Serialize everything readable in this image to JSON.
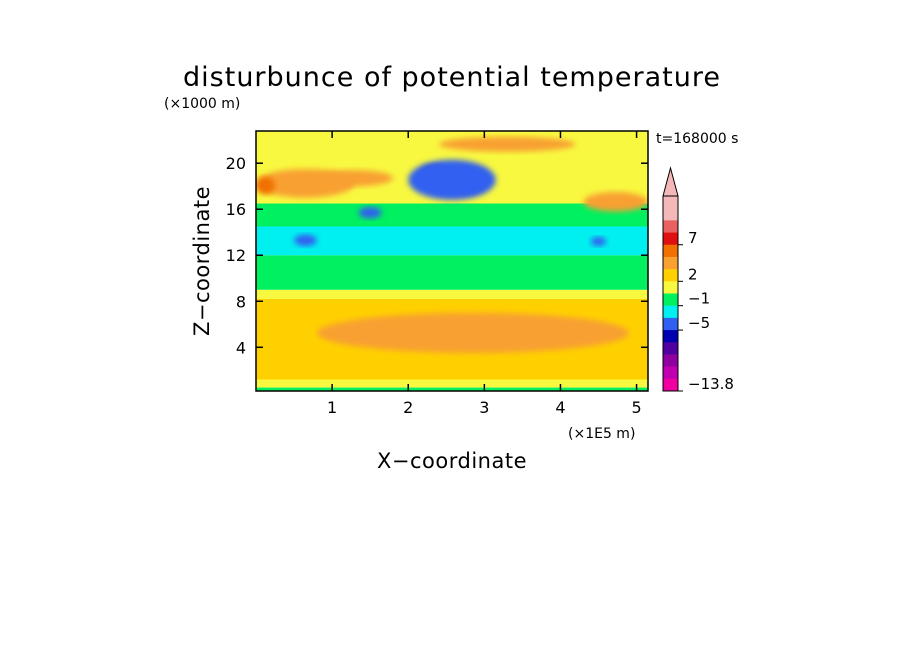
{
  "chart_data": {
    "type": "heatmap",
    "title": "disturbunce of potential temperature",
    "xlabel": "X−coordinate",
    "ylabel": "Z−coordinate",
    "x_units": "(×1E5 m)",
    "y_units": "(×1000 m)",
    "time_label": "t=168000 s",
    "xlim": [
      0,
      5.15
    ],
    "ylim": [
      0.2,
      22.8
    ],
    "x_ticks": [
      {
        "value": 1,
        "label": "1"
      },
      {
        "value": 2,
        "label": "2"
      },
      {
        "value": 3,
        "label": "3"
      },
      {
        "value": 4,
        "label": "4"
      },
      {
        "value": 5,
        "label": "5"
      }
    ],
    "y_ticks": [
      {
        "value": 4,
        "label": "4"
      },
      {
        "value": 8,
        "label": "8"
      },
      {
        "value": 12,
        "label": "12"
      },
      {
        "value": 16,
        "label": "16"
      },
      {
        "value": 20,
        "label": "20"
      }
    ],
    "colorbar": {
      "levels_top_to_bottom": [
        {
          "color": "#f5b8b8"
        },
        {
          "color": "#f5b8b8"
        },
        {
          "color": "#e86060"
        },
        {
          "color": "#e01010"
        },
        {
          "color": "#f07000"
        },
        {
          "color": "#f8a030"
        },
        {
          "color": "#ffd000"
        },
        {
          "color": "#f8f840"
        },
        {
          "color": "#00f060"
        },
        {
          "color": "#00f0f0"
        },
        {
          "color": "#3060f0"
        },
        {
          "color": "#0000b0"
        },
        {
          "color": "#5000a0"
        },
        {
          "color": "#9000a0"
        },
        {
          "color": "#c000b0"
        },
        {
          "color": "#f000a0"
        }
      ],
      "labels": [
        {
          "after_level": 3,
          "text": "7"
        },
        {
          "after_level": 6,
          "text": "2"
        },
        {
          "after_level": 8,
          "text": "−1"
        },
        {
          "after_level": 10,
          "text": "−5"
        },
        {
          "after_level": 15,
          "text": "−13.8"
        }
      ]
    },
    "bands": [
      {
        "z_range": [
          0.2,
          0.5
        ],
        "color": "#00f060"
      },
      {
        "z_range": [
          0.5,
          1.2
        ],
        "color": "#f8f840"
      },
      {
        "z_range": [
          1.2,
          8.2
        ],
        "color": "#ffd000"
      },
      {
        "z_range": [
          8.2,
          9.0
        ],
        "color": "#f8f840"
      },
      {
        "z_range": [
          9.0,
          12.0
        ],
        "color": "#00f060"
      },
      {
        "z_range": [
          12.0,
          14.5
        ],
        "color": "#00f0f0"
      },
      {
        "z_range": [
          14.5,
          16.5
        ],
        "color": "#00f060"
      },
      {
        "z_range": [
          16.5,
          22.8
        ],
        "color": "#f8f840"
      }
    ],
    "features": [
      {
        "kind": "warm_layer",
        "color": "#f8a030",
        "x": [
          0.0,
          1.3
        ],
        "z": [
          17.0,
          19.5
        ]
      },
      {
        "kind": "warm_layer",
        "color": "#f8a030",
        "x": [
          0.8,
          1.8
        ],
        "z": [
          18.0,
          19.4
        ]
      },
      {
        "kind": "warm_core",
        "color": "#f07000",
        "x": [
          0.0,
          0.25
        ],
        "z": [
          17.3,
          18.8
        ]
      },
      {
        "kind": "warm_layer",
        "color": "#f8a030",
        "x": [
          2.4,
          4.2
        ],
        "z": [
          21.0,
          22.3
        ]
      },
      {
        "kind": "warm_layer",
        "color": "#f8a030",
        "x": [
          4.3,
          5.15
        ],
        "z": [
          15.8,
          17.5
        ]
      },
      {
        "kind": "cold_core",
        "color": "#0000b0",
        "x": [
          2.15,
          2.55
        ],
        "z": [
          18.0,
          19.8
        ]
      },
      {
        "kind": "cold_core",
        "color": "#0000b0",
        "x": [
          2.6,
          3.0
        ],
        "z": [
          17.5,
          19.5
        ]
      },
      {
        "kind": "cold_ring",
        "color": "#3060f0",
        "x": [
          2.0,
          3.15
        ],
        "z": [
          16.8,
          20.3
        ]
      },
      {
        "kind": "cold_spot",
        "color": "#3060f0",
        "x": [
          0.5,
          0.8
        ],
        "z": [
          12.8,
          13.8
        ]
      },
      {
        "kind": "cold_spot",
        "color": "#3060f0",
        "x": [
          1.35,
          1.65
        ],
        "z": [
          15.2,
          16.2
        ]
      },
      {
        "kind": "cold_spot",
        "color": "#3060f0",
        "x": [
          4.4,
          4.6
        ],
        "z": [
          12.8,
          13.6
        ]
      },
      {
        "kind": "warm_blob",
        "color": "#f8a030",
        "x": [
          0.8,
          4.9
        ],
        "z": [
          3.5,
          7.0
        ]
      }
    ]
  }
}
